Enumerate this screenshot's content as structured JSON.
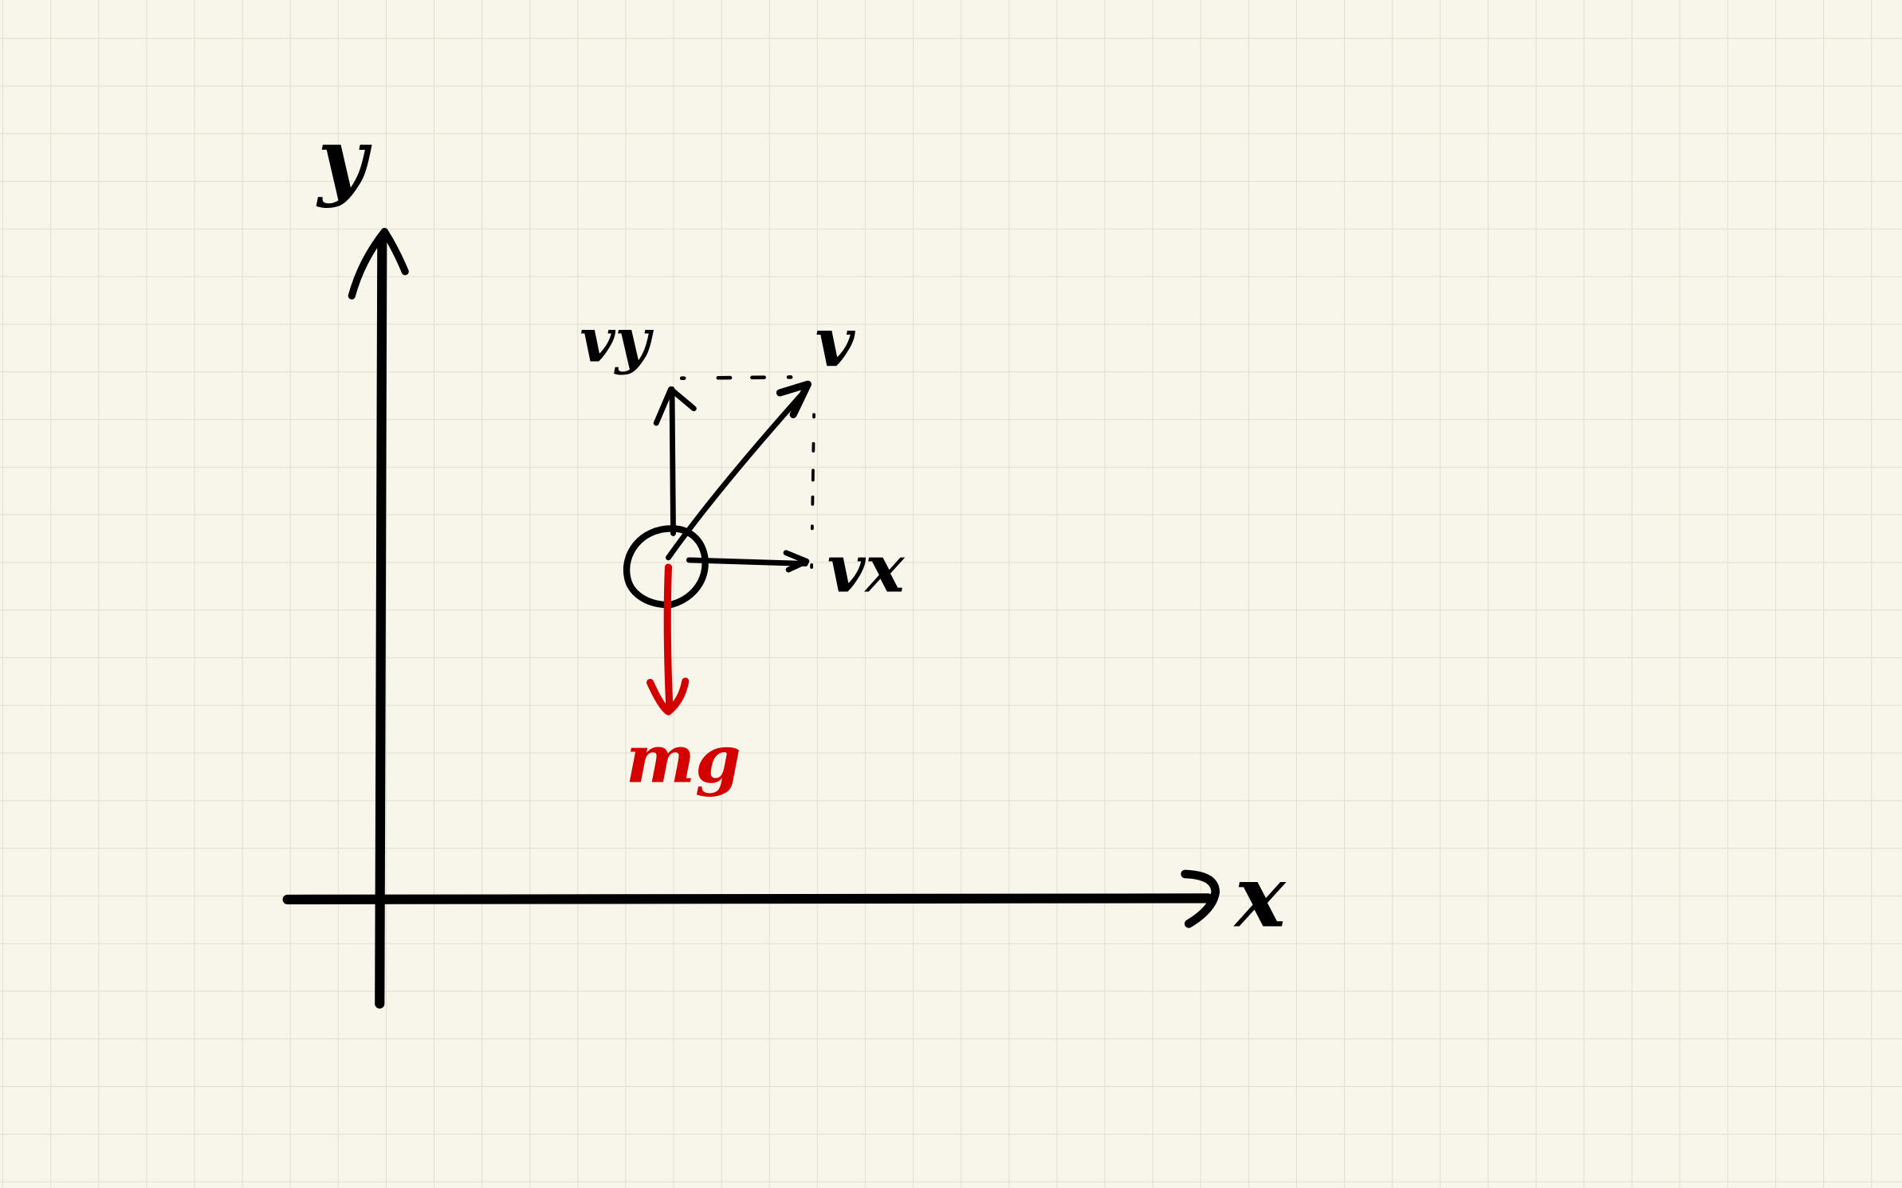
{
  "diagram": {
    "colors": {
      "paper": "#f8f6ea",
      "grid": "#e2dfd2",
      "ink": "#000000",
      "force": "#d40000"
    },
    "labels": {
      "x_axis": "x",
      "y_axis": "y",
      "velocity": "v",
      "velocity_x": "vx",
      "velocity_y": "vy",
      "weight": "mg"
    }
  }
}
